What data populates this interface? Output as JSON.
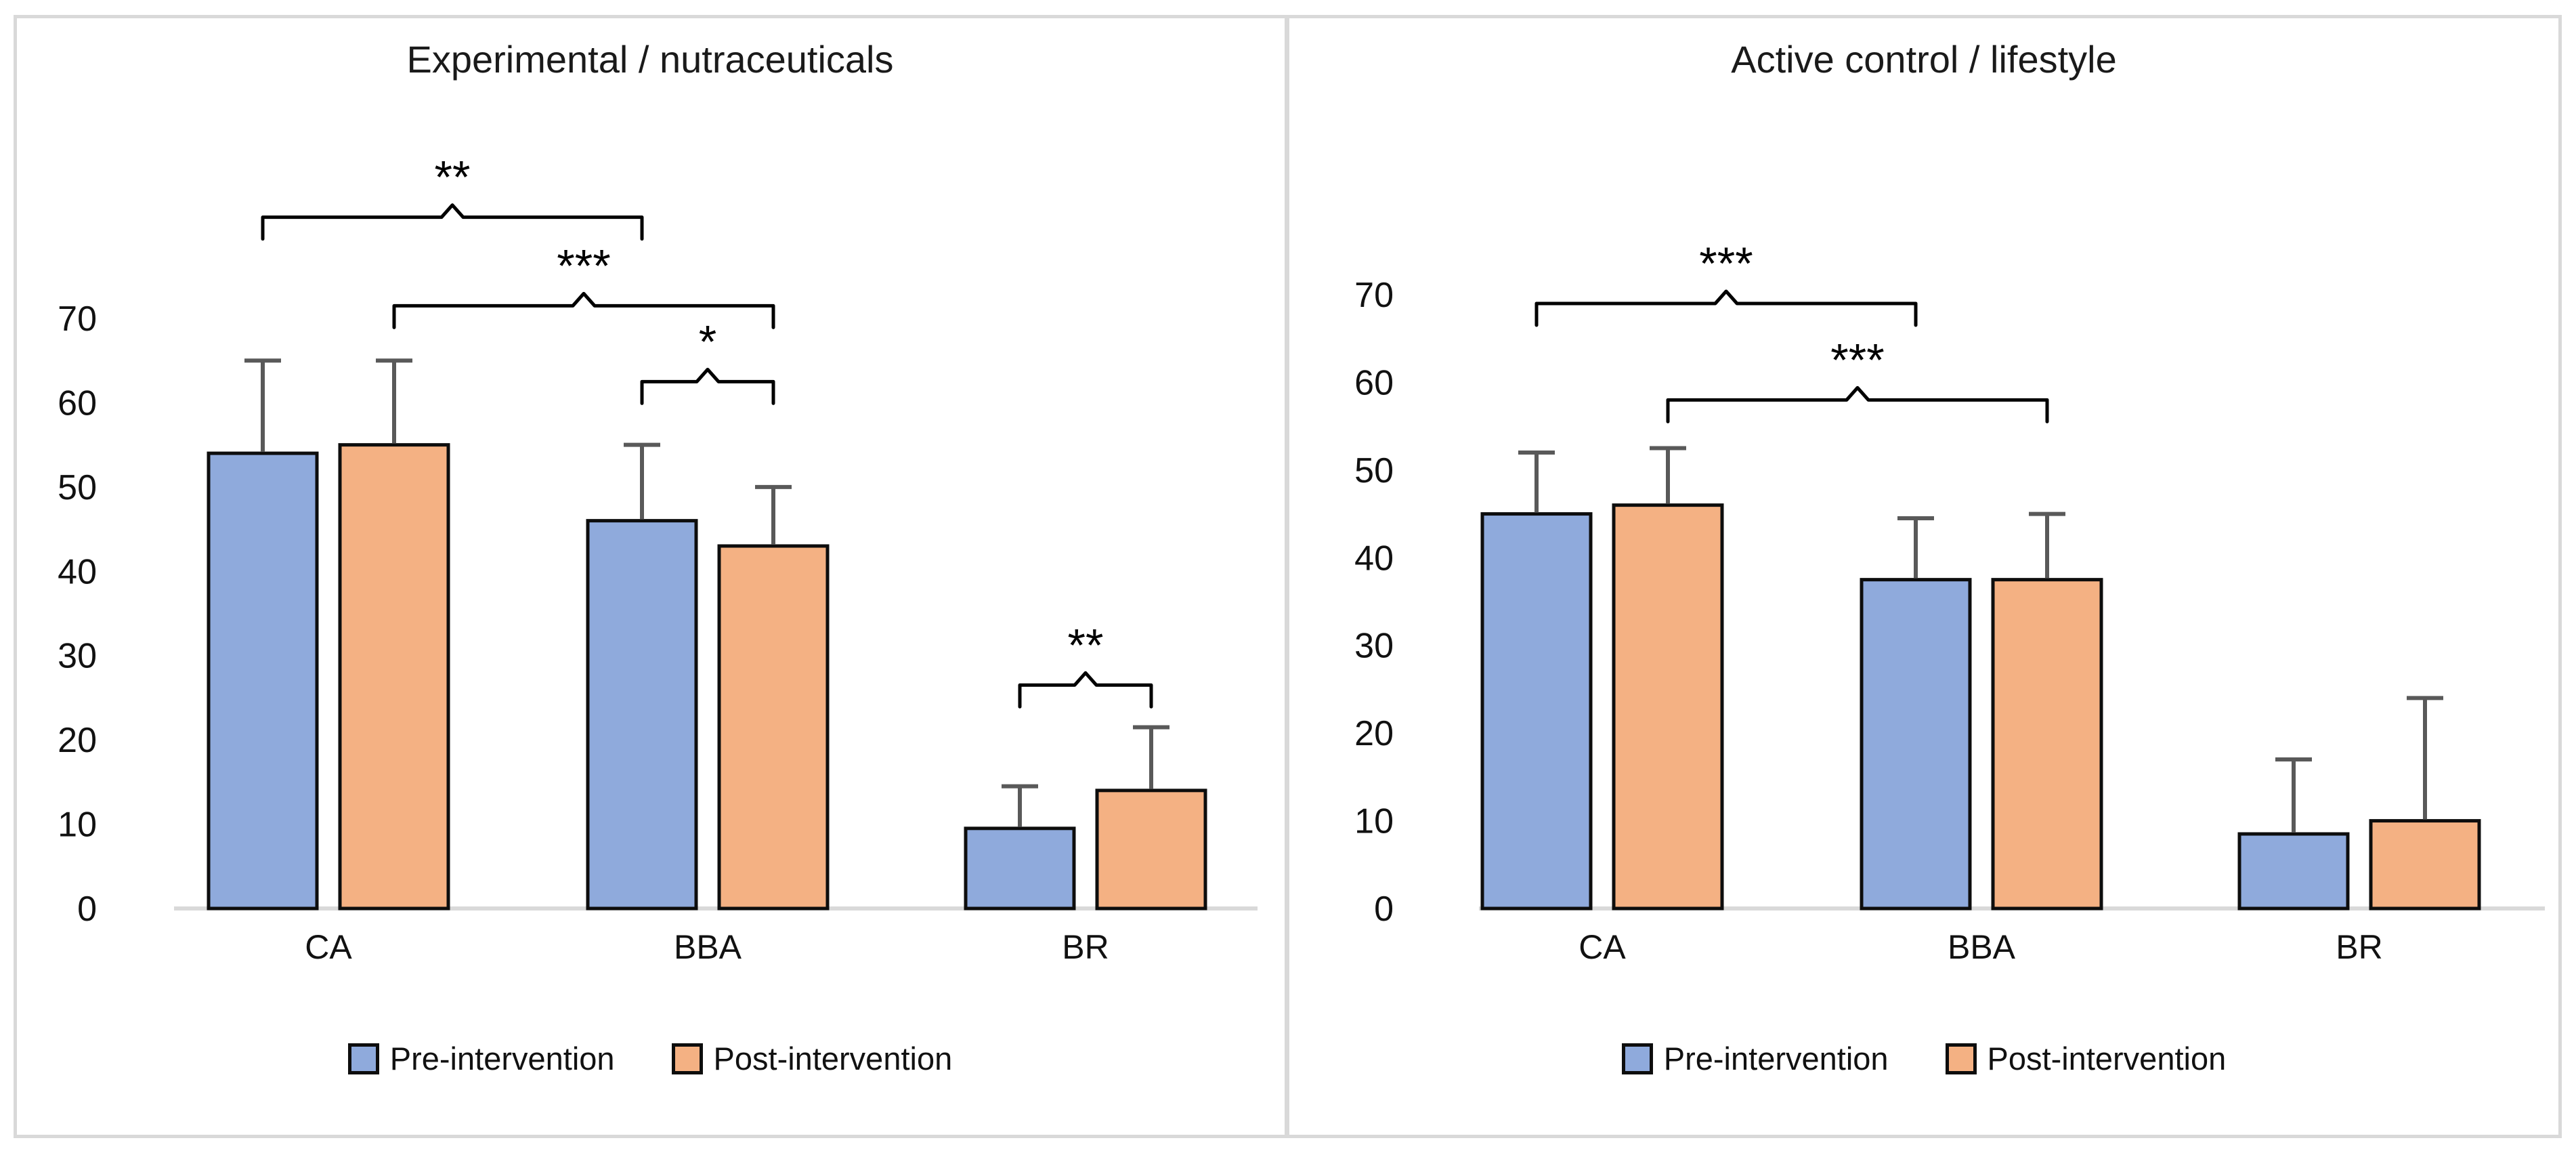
{
  "figure": {
    "background": "#ffffff",
    "border_color": "#d9d9d9"
  },
  "colors": {
    "pre_fill": "#8faadc",
    "post_fill": "#f4b183",
    "bar_border": "#0d0d0d",
    "error_bar": "#595959",
    "axis_line": "#d9d9d9",
    "bracket": "#000000",
    "text": "#1a1a1a"
  },
  "chart_data": [
    {
      "type": "bar",
      "title": "Experimental / nutraceuticals",
      "categories": [
        "CA",
        "BBA",
        "BR"
      ],
      "series": [
        {
          "name": "Pre-intervention",
          "values": [
            54,
            46,
            9.5
          ],
          "errors_plus": [
            11,
            9,
            5
          ]
        },
        {
          "name": "Post-intervention",
          "values": [
            55,
            43,
            14
          ],
          "errors_plus": [
            10,
            7,
            7.5
          ]
        }
      ],
      "xlabel": "",
      "ylabel": "",
      "ylim": [
        0,
        70
      ],
      "yticks": [
        0,
        10,
        20,
        30,
        40,
        50,
        60,
        70
      ],
      "grid": false,
      "legend_position": "bottom",
      "significance_brackets": [
        {
          "from_category": "CA",
          "from_series": "pre",
          "to_category": "BBA",
          "to_series": "pre",
          "label": "**",
          "height_units": 82
        },
        {
          "from_category": "CA",
          "from_series": "post",
          "to_category": "BBA",
          "to_series": "post",
          "label": "***",
          "height_units": 71.5
        },
        {
          "from_category": "BBA",
          "from_series": "pre",
          "to_category": "BBA",
          "to_series": "post",
          "label": "*",
          "height_units": 62.5
        },
        {
          "from_category": "BR",
          "from_series": "pre",
          "to_category": "BR",
          "to_series": "post",
          "label": "**",
          "height_units": 26.5
        }
      ]
    },
    {
      "type": "bar",
      "title": "Active control / lifestyle",
      "categories": [
        "CA",
        "BBA",
        "BR"
      ],
      "series": [
        {
          "name": "Pre-intervention",
          "values": [
            45,
            37.5,
            8.5
          ],
          "errors_plus": [
            7,
            7,
            8.5
          ]
        },
        {
          "name": "Post-intervention",
          "values": [
            46,
            37.5,
            10
          ],
          "errors_plus": [
            6.5,
            7.5,
            14
          ]
        }
      ],
      "xlabel": "",
      "ylabel": "",
      "ylim": [
        0,
        70
      ],
      "yticks": [
        0,
        10,
        20,
        30,
        40,
        50,
        60,
        70
      ],
      "grid": false,
      "legend_position": "bottom",
      "significance_brackets": [
        {
          "from_category": "CA",
          "from_series": "pre",
          "to_category": "BBA",
          "to_series": "pre",
          "label": "***",
          "height_units": 69
        },
        {
          "from_category": "CA",
          "from_series": "post",
          "to_category": "BBA",
          "to_series": "post",
          "label": "***",
          "height_units": 58
        }
      ]
    }
  ]
}
